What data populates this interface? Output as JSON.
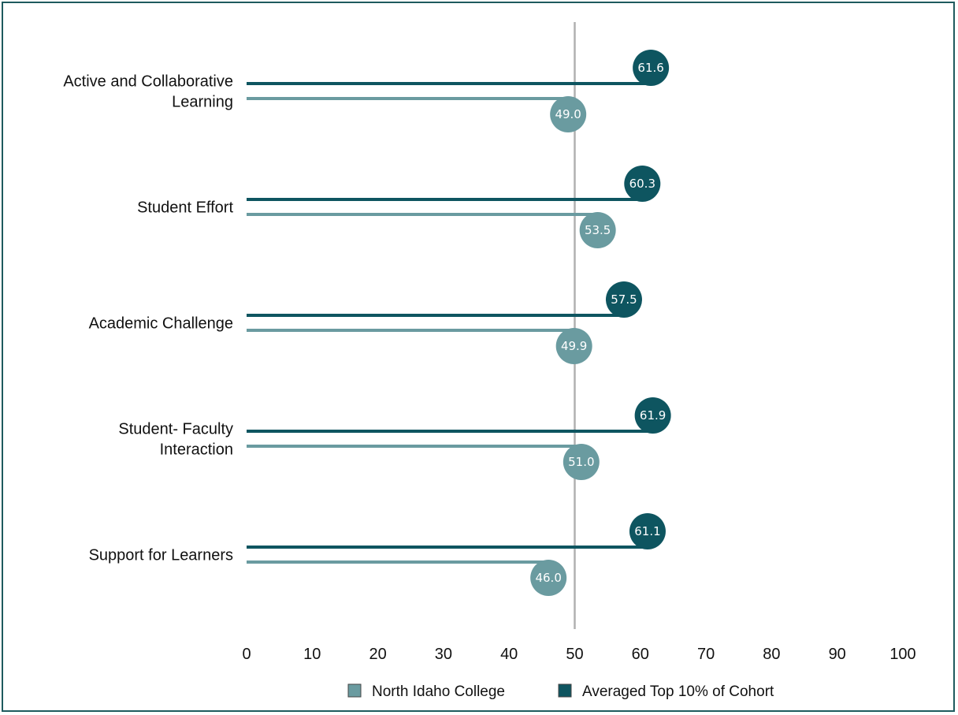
{
  "chart_data": {
    "type": "bar",
    "orientation": "horizontal",
    "style": "lollipop",
    "categories": [
      [
        "Active and Collaborative",
        "Learning"
      ],
      [
        "Student Effort"
      ],
      [
        "Academic Challenge"
      ],
      [
        "Student- Faculty",
        "Interaction"
      ],
      [
        "Support for Learners"
      ]
    ],
    "series": [
      {
        "name": "North Idaho College",
        "color": "#6a9ba0",
        "values": [
          49.0,
          53.5,
          49.9,
          51.0,
          46.0
        ],
        "labels": [
          "49.0",
          "53.5",
          "49.9",
          "51.0",
          "46.0"
        ]
      },
      {
        "name": "Averaged Top 10% of Cohort",
        "color": "#0e5560",
        "values": [
          61.6,
          60.3,
          57.5,
          61.9,
          61.1
        ],
        "labels": [
          "61.6",
          "60.3",
          "57.5",
          "61.9",
          "61.1"
        ]
      }
    ],
    "xlim": [
      0,
      100
    ],
    "xticks": [
      "0",
      "10",
      "20",
      "30",
      "40",
      "50",
      "60",
      "70",
      "80",
      "90",
      "100"
    ],
    "reference_line": 50,
    "legend_position": "bottom",
    "title": "",
    "xlabel": "",
    "ylabel": ""
  },
  "colors": {
    "reference_line": "#b0b0b0",
    "frame_border": "#1f5a5e"
  }
}
